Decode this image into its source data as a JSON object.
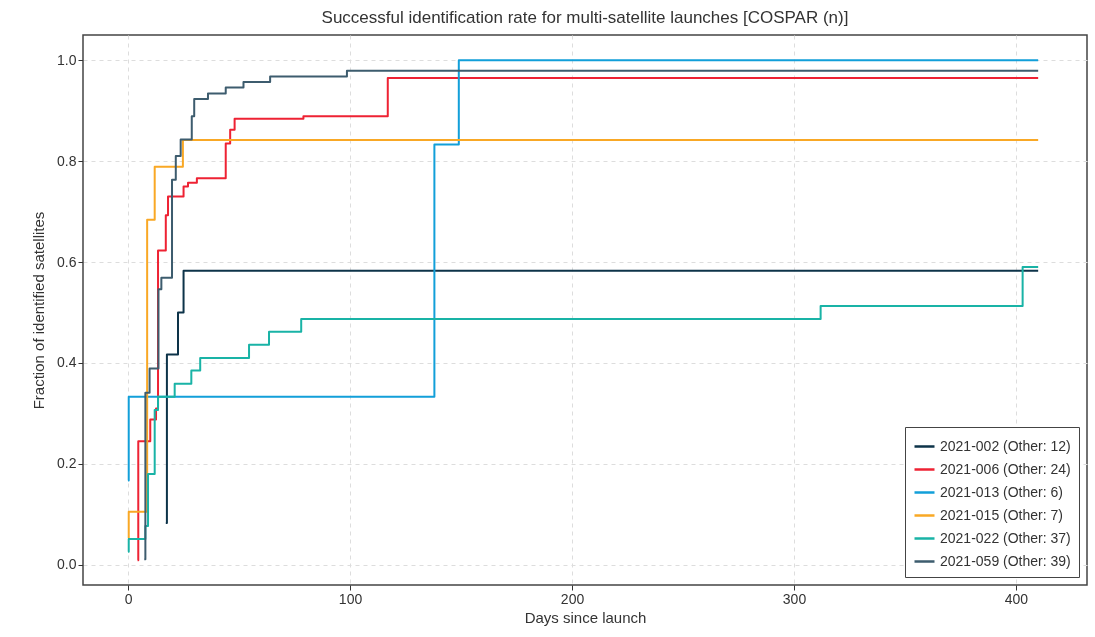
{
  "chart_data": {
    "type": "step",
    "title": "Successful identification rate for multi-satellite launches [COSPAR (n)]",
    "xlabel": "Days since launch",
    "ylabel": "Fraction of identified satellites",
    "xlim": [
      -20.3,
      432
    ],
    "ylim": [
      -0.04,
      1.05
    ],
    "xticks": [
      0,
      100,
      200,
      300,
      400
    ],
    "yticks": [
      {
        "value": 0,
        "label": "0.0"
      },
      0.2,
      0.4,
      0.6,
      0.8,
      {
        "value": 1,
        "label": "1.0"
      }
    ],
    "grid": true,
    "legend": "bottom right",
    "series": [
      {
        "name": "2021-002 (Other: 12)",
        "color": "#0d3349",
        "x": [
          17,
          17.5,
          22.5,
          25,
          410
        ],
        "values": [
          0.083,
          0.417,
          0.5,
          0.583,
          0.583
        ]
      },
      {
        "name": "2021-006 (Other: 24)",
        "color": "#ee2233",
        "x": [
          4.3,
          4.6,
          10,
          12.6,
          13.5,
          17,
          18,
          25,
          27,
          31,
          44,
          46,
          48,
          79,
          117,
          410
        ],
        "values": [
          0.009,
          0.245,
          0.288,
          0.31,
          0.623,
          0.693,
          0.73,
          0.75,
          0.757,
          0.766,
          0.835,
          0.862,
          0.884,
          0.889,
          0.965,
          0.965
        ]
      },
      {
        "name": "2021-013 (Other: 6)",
        "color": "#129fd9",
        "x": [
          0,
          0.3,
          138,
          149,
          410
        ],
        "values": [
          0.167,
          0.333,
          0.833,
          1.0,
          1.0
        ]
      },
      {
        "name": "2021-015 (Other: 7)",
        "color": "#f9a825",
        "x": [
          0,
          0.3,
          8.6,
          12,
          24.7,
          410
        ],
        "values": [
          0.053,
          0.105,
          0.684,
          0.789,
          0.842,
          0.842
        ]
      },
      {
        "name": "2021-022 (Other: 37)",
        "color": "#19b3a6",
        "x": [
          0,
          0.3,
          7.8,
          9,
          12,
          13.5,
          21,
          28.5,
          32.5,
          54.5,
          63.5,
          78,
          312,
          403,
          410
        ],
        "values": [
          0.026,
          0.051,
          0.077,
          0.18,
          0.307,
          0.333,
          0.359,
          0.385,
          0.41,
          0.436,
          0.462,
          0.487,
          0.513,
          0.59,
          0.59
        ]
      },
      {
        "name": "2021-059 (Other: 39)",
        "color": "#3d5c6e",
        "x": [
          7.3,
          7.8,
          9.7,
          13.7,
          15,
          19.8,
          21.5,
          23.7,
          28.7,
          29.8,
          36,
          44,
          52,
          64,
          98.6,
          410
        ],
        "values": [
          0.011,
          0.341,
          0.389,
          0.546,
          0.569,
          0.763,
          0.81,
          0.843,
          0.889,
          0.923,
          0.934,
          0.946,
          0.957,
          0.968,
          0.979,
          0.979
        ]
      }
    ]
  }
}
